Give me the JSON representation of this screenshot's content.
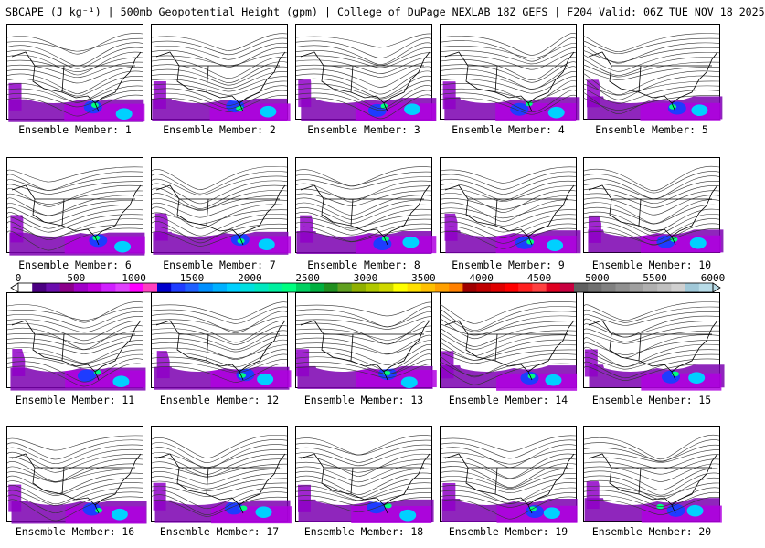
{
  "header": {
    "title": "SBCAPE (J kg⁻¹) | 500mb Geopotential Height (gpm) | College of DuPage NEXLAB 18Z GEFS | F204 Valid: 06Z TUE NOV 18 2025"
  },
  "members": [
    {
      "label": "Ensemble Member: 1"
    },
    {
      "label": "Ensemble Member: 2"
    },
    {
      "label": "Ensemble Member: 3"
    },
    {
      "label": "Ensemble Member: 4"
    },
    {
      "label": "Ensemble Member: 5"
    },
    {
      "label": "Ensemble Member: 6"
    },
    {
      "label": "Ensemble Member: 7"
    },
    {
      "label": "Ensemble Member: 8"
    },
    {
      "label": "Ensemble Member: 9"
    },
    {
      "label": "Ensemble Member: 10"
    },
    {
      "label": "Ensemble Member: 11"
    },
    {
      "label": "Ensemble Member: 12"
    },
    {
      "label": "Ensemble Member: 13"
    },
    {
      "label": "Ensemble Member: 14"
    },
    {
      "label": "Ensemble Member: 15"
    },
    {
      "label": "Ensemble Member: 16"
    },
    {
      "label": "Ensemble Member: 17"
    },
    {
      "label": "Ensemble Member: 18"
    },
    {
      "label": "Ensemble Member: 19"
    },
    {
      "label": "Ensemble Member: 20"
    }
  ],
  "colorbar": {
    "ticks": [
      "0",
      "500",
      "1000",
      "1500",
      "2000",
      "2500",
      "3000",
      "3500",
      "4000",
      "4500",
      "5000",
      "5500",
      "6000"
    ],
    "colors": [
      "#ffffff",
      "#4b0082",
      "#6a0dad",
      "#8b008b",
      "#a000c8",
      "#c000e0",
      "#d020ff",
      "#e040ff",
      "#ff00ff",
      "#ff40c0",
      "#0000cd",
      "#1e3cff",
      "#2060ff",
      "#0090ff",
      "#00b0ff",
      "#00d0ff",
      "#00e0e0",
      "#00e8c0",
      "#00f0a0",
      "#00ff80",
      "#00d060",
      "#00b040",
      "#209020",
      "#60a020",
      "#90b000",
      "#b0c800",
      "#d0d800",
      "#ffff00",
      "#ffe000",
      "#ffc000",
      "#ffa000",
      "#ff8000",
      "#a00000",
      "#c00000",
      "#e00000",
      "#ff0000",
      "#ff2020",
      "#ff4040",
      "#e00020",
      "#c80040",
      "#606060",
      "#707070",
      "#808080",
      "#909090",
      "#a0a0a0",
      "#b0b0b0",
      "#c0c0c0",
      "#d0d0d0",
      "#a0c8d8",
      "#b8dce8"
    ]
  }
}
